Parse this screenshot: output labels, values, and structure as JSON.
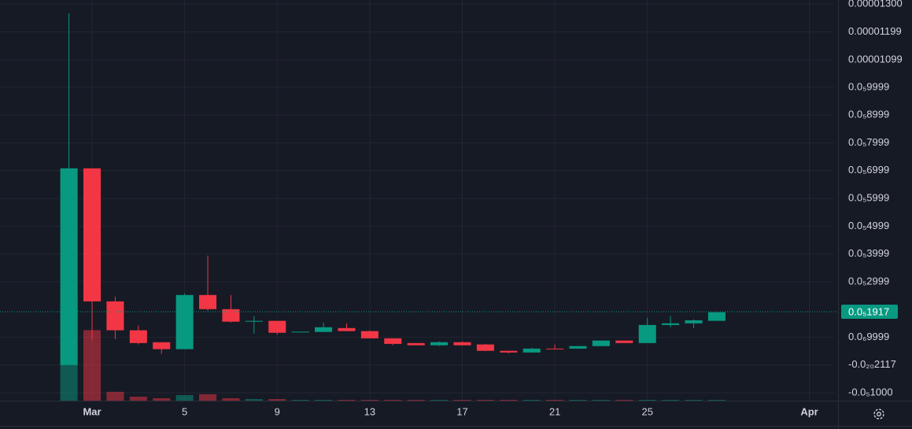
{
  "chart_data": {
    "type": "candlestick",
    "x": [
      0,
      1,
      2,
      3,
      4,
      5,
      6,
      7,
      8,
      9,
      10,
      11,
      12,
      13,
      14,
      15,
      16,
      17,
      18,
      19,
      20,
      21,
      22,
      23,
      24,
      25,
      26,
      27,
      28
    ],
    "open": [
      0,
      7.08e-06,
      2.29e-06,
      1.25e-06,
      8.2e-07,
      5.7e-07,
      2.52e-06,
      2.01e-06,
      1.56e-06,
      1.59e-06,
      1.19e-06,
      1.19e-06,
      1.33e-06,
      1.22e-06,
      9.6e-07,
      7.9e-07,
      7.1e-07,
      8.2e-07,
      7.4e-07,
      5.1e-07,
      4.5e-07,
      5.9e-07,
      5.9e-07,
      6.8e-07,
      8.8e-07,
      7.9e-07,
      1.44e-06,
      1.5e-06,
      1.59e-06
    ],
    "high": [
      1.266e-05,
      7.08e-06,
      2.46e-06,
      1.42e-06,
      8.2e-07,
      2.58e-06,
      3.94e-06,
      2.52e-06,
      1.76e-06,
      1.59e-06,
      1.2e-06,
      1.53e-06,
      1.5e-06,
      1.25e-06,
      9.6e-07,
      7.9e-07,
      8.5e-07,
      8.5e-07,
      7.6e-07,
      5.1e-07,
      6.2e-07,
      7.4e-07,
      6.8e-07,
      8.8e-07,
      8.8e-07,
      1.7e-06,
      1.76e-06,
      1.64e-06,
      1.9e-06
    ],
    "low": [
      0,
      9.1e-07,
      9.3e-07,
      7.4e-07,
      4e-07,
      5.7e-07,
      1.95e-06,
      1.53e-06,
      1.13e-06,
      1.1e-06,
      1.19e-06,
      1.19e-06,
      1.22e-06,
      9.6e-07,
      7.1e-07,
      7.1e-07,
      6.8e-07,
      7.1e-07,
      5.1e-07,
      4.2e-07,
      4.5e-07,
      5.7e-07,
      5.9e-07,
      6.8e-07,
      7.9e-07,
      7.9e-07,
      1.36e-06,
      1.33e-06,
      1.59e-06
    ],
    "close": [
      7.08e-06,
      2.29e-06,
      1.25e-06,
      7.9e-07,
      5.7e-07,
      2.52e-06,
      2.01e-06,
      1.56e-06,
      1.59e-06,
      1.16e-06,
      1.2e-06,
      1.36e-06,
      1.22e-06,
      9.6e-07,
      7.6e-07,
      7.1e-07,
      8.2e-07,
      7.1e-07,
      5.1e-07,
      4.5e-07,
      5.9e-07,
      5.7e-07,
      6.8e-07,
      8.8e-07,
      7.9e-07,
      1.44e-06,
      1.5e-06,
      1.61e-06,
      1.9e-06
    ],
    "volume": [
      137,
      88,
      11,
      5,
      3,
      7,
      8,
      3,
      2,
      2,
      1,
      1,
      1,
      1,
      1,
      1,
      1,
      1,
      1,
      1,
      1,
      1,
      1,
      1,
      1,
      1,
      1,
      1,
      1
    ],
    "volume_lim": [
      0,
      500
    ],
    "up_color": "#089981",
    "down_color": "#f23645",
    "xlim": [
      -2.98,
      33.07
    ],
    "xticks": [
      {
        "value": 1,
        "label": "Mar"
      },
      5,
      9,
      13,
      17,
      21,
      25,
      {
        "value": 32,
        "label": "Apr"
      }
    ],
    "ylim": [
      -1.284e-06,
      1.3142e-05
    ],
    "yticks": [
      {
        "value": 1.3e-05,
        "label": "0.00001300"
      },
      {
        "value": 1.199e-05,
        "label": "0.00001199"
      },
      {
        "value": 1.099e-05,
        "label": "0.00001099"
      },
      {
        "value": 9.999e-06,
        "label": "0.0₅9999"
      },
      {
        "value": 8.999e-06,
        "label": "0.0₅8999"
      },
      {
        "value": 7.999e-06,
        "label": "0.0₅7999"
      },
      {
        "value": 6.999e-06,
        "label": "0.0₅6999"
      },
      {
        "value": 5.999e-06,
        "label": "0.0₅5999"
      },
      {
        "value": 4.999e-06,
        "label": "0.0₅4999"
      },
      {
        "value": 3.999e-06,
        "label": "0.0₅3999"
      },
      {
        "value": 2.999e-06,
        "label": "0.0₅2999"
      },
      {
        "value": 9.999e-07,
        "label": "0.0₆9999"
      },
      {
        "value": -2.117e-21,
        "label": "-0.0₂₀2117"
      },
      {
        "value": -1e-06,
        "label": "-0.0₅1000"
      }
    ],
    "last_price": {
      "value": 1.917e-06,
      "label": "0.0₅1917"
    },
    "grid": true
  }
}
